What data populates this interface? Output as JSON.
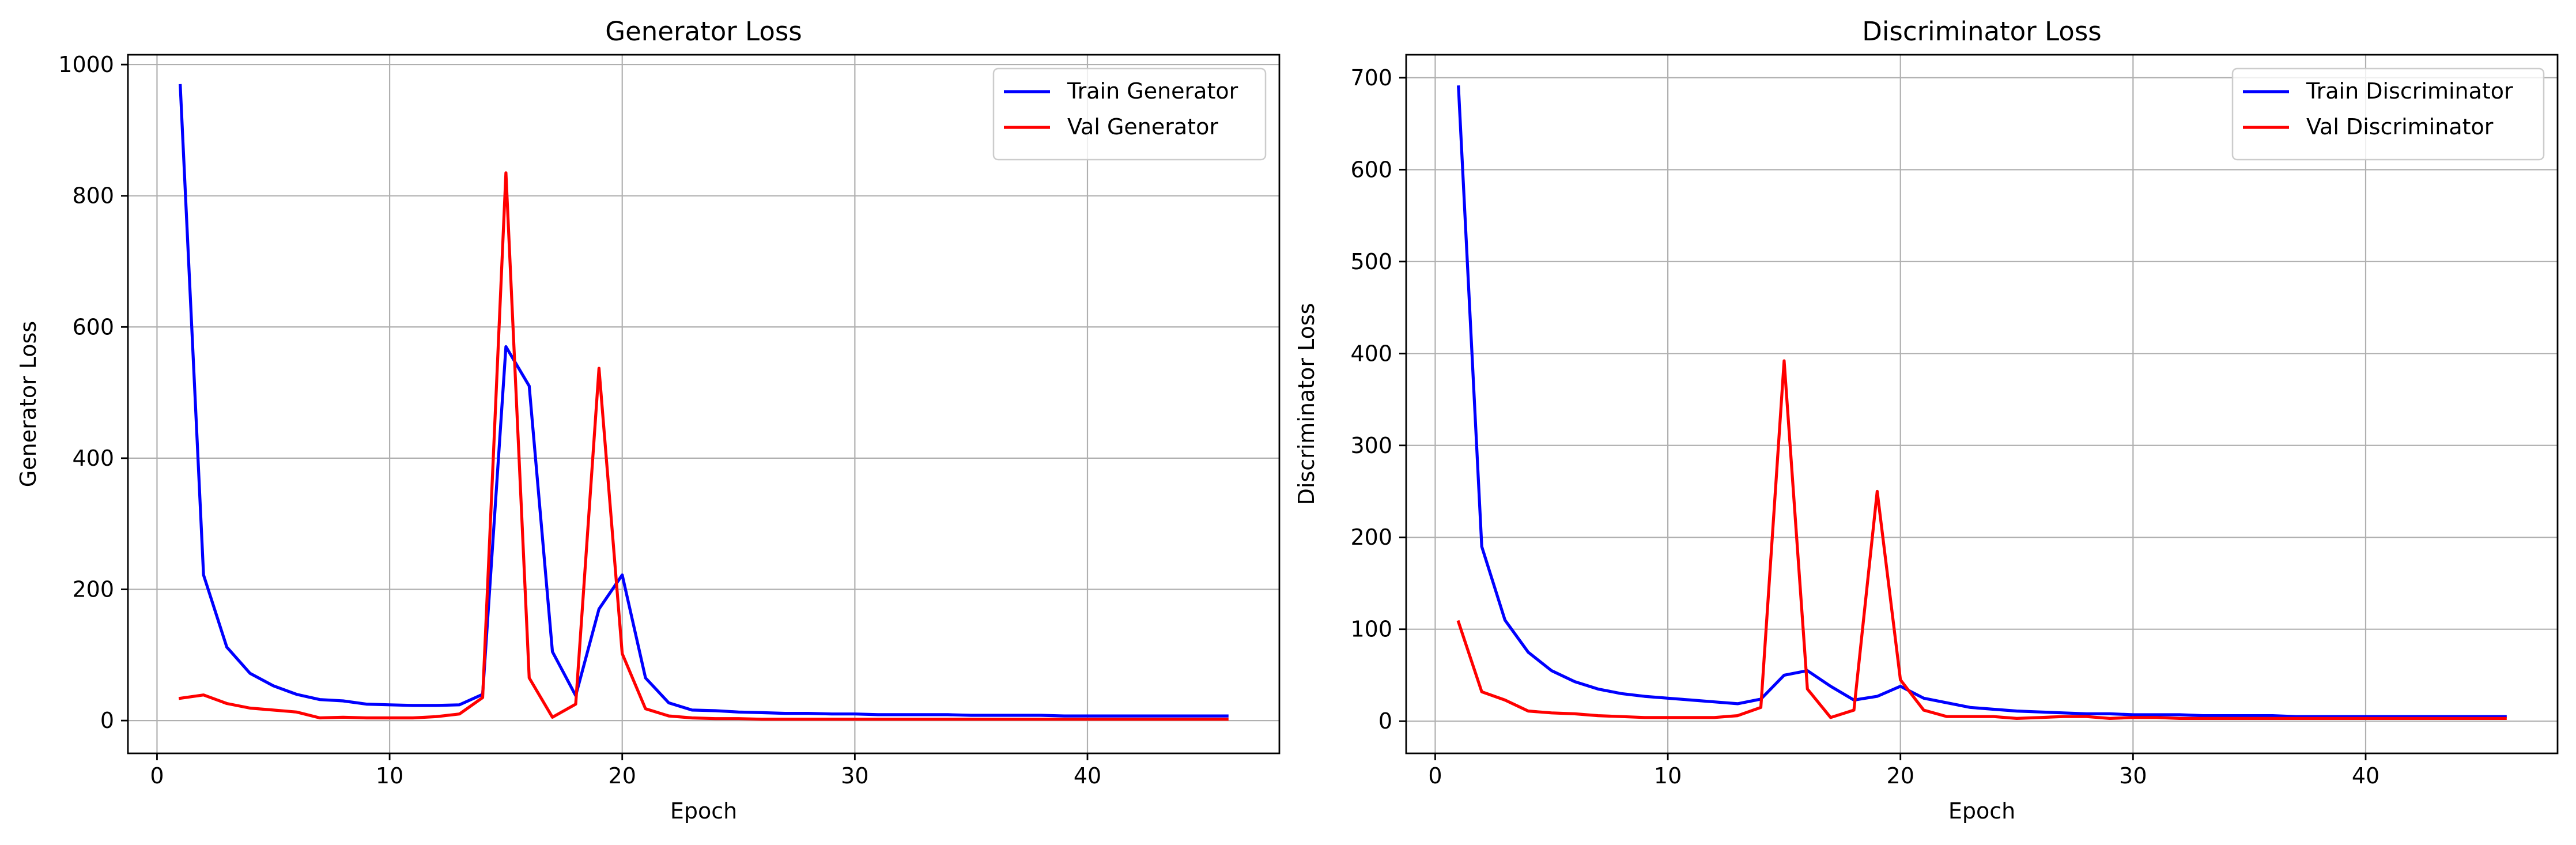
{
  "chart_data": [
    {
      "type": "line",
      "title": "Generator Loss",
      "xlabel": "Epoch",
      "ylabel": "Generator Loss",
      "xlim": [
        -1.25,
        48.25
      ],
      "ylim": [
        -50,
        1015
      ],
      "xticks": [
        0,
        10,
        20,
        30,
        40
      ],
      "yticks": [
        0,
        200,
        400,
        600,
        800,
        1000
      ],
      "grid": true,
      "legend_position": "top-right",
      "x": [
        1,
        2,
        3,
        4,
        5,
        6,
        7,
        8,
        9,
        10,
        11,
        12,
        13,
        14,
        15,
        16,
        17,
        18,
        19,
        20,
        21,
        22,
        23,
        24,
        25,
        26,
        27,
        28,
        29,
        30,
        31,
        32,
        33,
        34,
        35,
        36,
        37,
        38,
        39,
        40,
        41,
        42,
        43,
        44,
        45,
        46
      ],
      "series": [
        {
          "name": "Train Generator",
          "color": "#0000ff",
          "values": [
            968,
            222,
            112,
            72,
            53,
            40,
            32,
            30,
            25,
            24,
            23,
            23,
            24,
            40,
            570,
            510,
            105,
            38,
            170,
            222,
            65,
            27,
            16,
            15,
            13,
            12,
            11,
            11,
            10,
            10,
            9,
            9,
            9,
            9,
            8,
            8,
            8,
            8,
            7,
            7,
            7,
            7,
            7,
            7,
            7,
            7
          ]
        },
        {
          "name": "Val Generator",
          "color": "#ff0000",
          "values": [
            34,
            39,
            26,
            19,
            16,
            13,
            4,
            5,
            4,
            4,
            4,
            6,
            10,
            35,
            835,
            65,
            5,
            25,
            537,
            102,
            18,
            7,
            4,
            3,
            3,
            2,
            2,
            2,
            2,
            2,
            2,
            2,
            2,
            2,
            2,
            2,
            2,
            2,
            2,
            2,
            2,
            2,
            2,
            2,
            2,
            2
          ]
        }
      ]
    },
    {
      "type": "line",
      "title": "Discriminator Loss",
      "xlabel": "Epoch",
      "ylabel": "Discriminator Loss",
      "xlim": [
        -1.25,
        48.25
      ],
      "ylim": [
        -35,
        725
      ],
      "xticks": [
        0,
        10,
        20,
        30,
        40
      ],
      "yticks": [
        0,
        100,
        200,
        300,
        400,
        500,
        600,
        700
      ],
      "grid": true,
      "legend_position": "top-right",
      "x": [
        1,
        2,
        3,
        4,
        5,
        6,
        7,
        8,
        9,
        10,
        11,
        12,
        13,
        14,
        15,
        16,
        17,
        18,
        19,
        20,
        21,
        22,
        23,
        24,
        25,
        26,
        27,
        28,
        29,
        30,
        31,
        32,
        33,
        34,
        35,
        36,
        37,
        38,
        39,
        40,
        41,
        42,
        43,
        44,
        45,
        46
      ],
      "series": [
        {
          "name": "Train Discriminator",
          "color": "#0000ff",
          "values": [
            690,
            190,
            110,
            75,
            55,
            43,
            35,
            30,
            27,
            25,
            23,
            21,
            19,
            24,
            50,
            55,
            38,
            23,
            27,
            38,
            25,
            20,
            15,
            13,
            11,
            10,
            9,
            8,
            8,
            7,
            7,
            7,
            6,
            6,
            6,
            6,
            5,
            5,
            5,
            5,
            5,
            5,
            5,
            5,
            5,
            5
          ]
        },
        {
          "name": "Val Discriminator",
          "color": "#ff0000",
          "values": [
            108,
            32,
            23,
            11,
            9,
            8,
            6,
            5,
            4,
            4,
            4,
            4,
            6,
            15,
            392,
            35,
            4,
            12,
            250,
            45,
            12,
            5,
            5,
            5,
            3,
            4,
            5,
            5,
            3,
            4,
            4,
            3,
            3,
            3,
            3,
            3,
            3,
            3,
            3,
            3,
            3,
            3,
            3,
            3,
            3,
            3
          ]
        }
      ]
    }
  ]
}
